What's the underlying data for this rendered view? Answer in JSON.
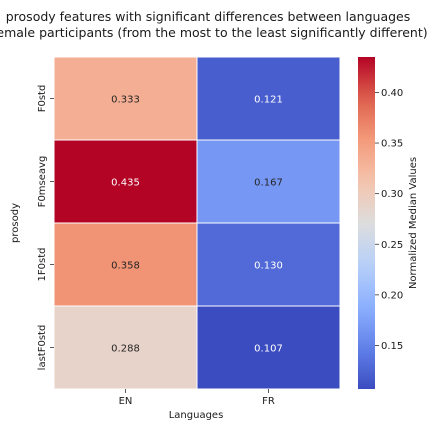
{
  "chart_data": {
    "type": "heatmap",
    "title_lines": [
      "prosody features with significant differences between languages",
      "female participants (from the most to the least significantly different)"
    ],
    "xlabel": "Languages",
    "ylabel": "prosody",
    "x_categories": [
      "EN",
      "FR"
    ],
    "y_categories": [
      "F0std",
      "F0mseavg",
      "1F0std",
      "lastF0std"
    ],
    "values": [
      [
        0.333,
        0.121
      ],
      [
        0.435,
        0.167
      ],
      [
        0.358,
        0.13
      ],
      [
        0.288,
        0.107
      ]
    ],
    "value_labels": [
      [
        "0.333",
        "0.121"
      ],
      [
        "0.435",
        "0.167"
      ],
      [
        "0.358",
        "0.130"
      ],
      [
        "0.288",
        "0.107"
      ]
    ],
    "colormap": "coolwarm",
    "colorbar": {
      "label": "Normalized Median Values",
      "range": [
        0.107,
        0.435
      ],
      "ticks": [
        0.15,
        0.2,
        0.25,
        0.3,
        0.35,
        0.4
      ],
      "tick_labels": [
        "0.15",
        "0.20",
        "0.25",
        "0.30",
        "0.35",
        "0.40"
      ]
    }
  }
}
